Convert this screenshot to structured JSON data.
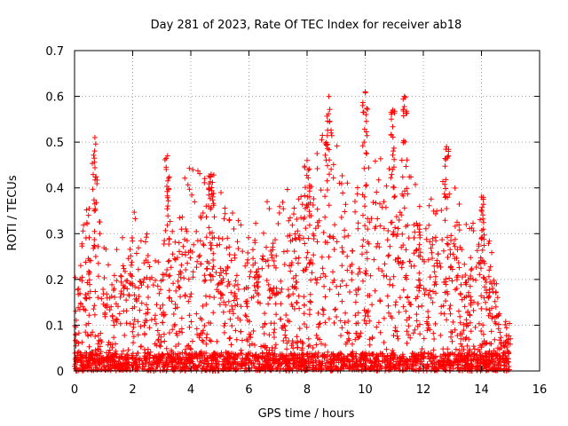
{
  "chart_data": {
    "type": "scatter",
    "title": "Day 281 of 2023, Rate Of TEC Index for receiver ab18",
    "xlabel": "GPS time / hours",
    "ylabel": "ROTI / TECUs",
    "xlim": [
      0,
      16
    ],
    "ylim": [
      0,
      0.7
    ],
    "x_ticks": [
      "0",
      "2",
      "4",
      "6",
      "8",
      "10",
      "12",
      "14",
      "16"
    ],
    "y_ticks": [
      "0",
      "0.1",
      "0.2",
      "0.3",
      "0.4",
      "0.5",
      "0.6",
      "0.7"
    ],
    "grid": true,
    "marker": "plus",
    "color": "#ff0000",
    "x_range_of_data": [
      0,
      15
    ],
    "peaks": [
      {
        "x": 0.7,
        "y": 0.51
      },
      {
        "x": 3.2,
        "y": 0.47
      },
      {
        "x": 4.7,
        "y": 0.43
      },
      {
        "x": 8.0,
        "y": 0.46
      },
      {
        "x": 8.75,
        "y": 0.6
      },
      {
        "x": 10.0,
        "y": 0.61
      },
      {
        "x": 10.95,
        "y": 0.57
      },
      {
        "x": 11.35,
        "y": 0.6
      },
      {
        "x": 12.8,
        "y": 0.49
      },
      {
        "x": 14.0,
        "y": 0.38
      }
    ]
  }
}
